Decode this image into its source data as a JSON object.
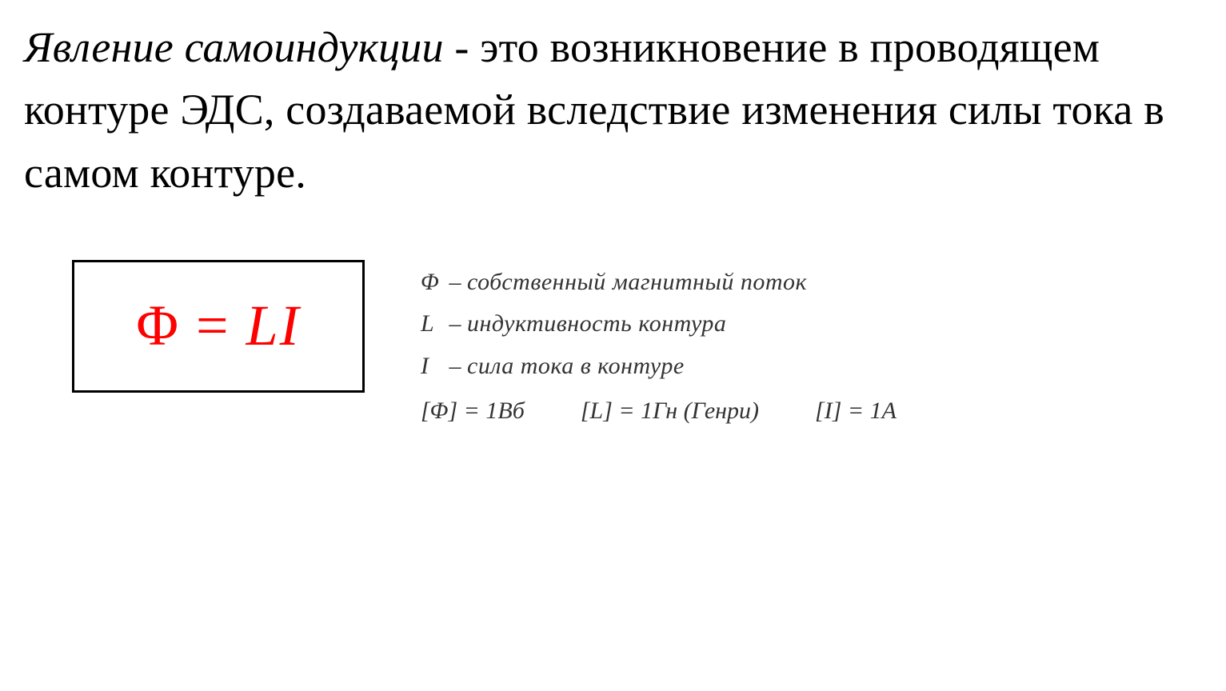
{
  "definition": {
    "term": "Явление самоиндукции",
    "separator": " - ",
    "body": "это возникновение в проводящем контуре ЭДС, создаваемой вследствие изменения силы тока в самом контуре."
  },
  "formula": {
    "phi": "Φ",
    "equals": " = ",
    "L": "L",
    "I": "I",
    "color": "#ff0000",
    "border_color": "#000000"
  },
  "legend": {
    "row1_sym": "Φ",
    "row1_dash": " – ",
    "row1_desc": "собственный магнитный поток",
    "row2_sym": "L",
    "row2_dash": " – ",
    "row2_desc": "индуктивность контура",
    "row3_sym": "I",
    "row3_dash": " – ",
    "row3_desc": "сила тока в контуре"
  },
  "units": {
    "phi": "[Φ] = 1Вб",
    "L_text": "[L] = 1Гн (Генри)",
    "I": "[I] = 1А"
  }
}
